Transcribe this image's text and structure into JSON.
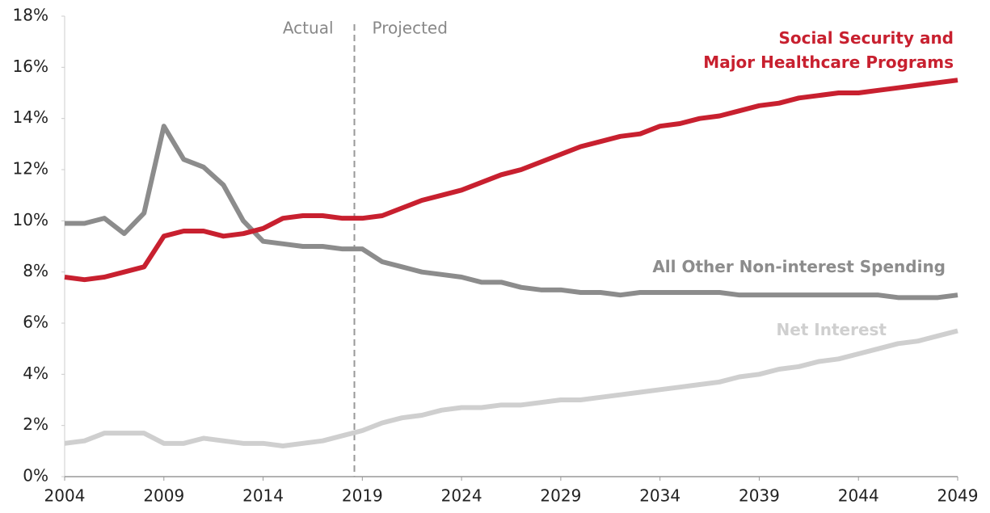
{
  "chart_data": {
    "type": "line",
    "x": [
      2004,
      2005,
      2006,
      2007,
      2008,
      2009,
      2010,
      2011,
      2012,
      2013,
      2014,
      2015,
      2016,
      2017,
      2018,
      2019,
      2020,
      2021,
      2022,
      2023,
      2024,
      2025,
      2026,
      2027,
      2028,
      2029,
      2030,
      2031,
      2032,
      2033,
      2034,
      2035,
      2036,
      2037,
      2038,
      2039,
      2040,
      2041,
      2042,
      2043,
      2044,
      2045,
      2046,
      2047,
      2048,
      2049
    ],
    "xlim": [
      2004,
      2049
    ],
    "xticks": [
      2004,
      2009,
      2014,
      2019,
      2024,
      2029,
      2034,
      2039,
      2044,
      2049
    ],
    "ylim": [
      0,
      18
    ],
    "yticks": [
      {
        "value": 0,
        "label": "0%"
      },
      {
        "value": 2,
        "label": "2%"
      },
      {
        "value": 4,
        "label": "4%"
      },
      {
        "value": 6,
        "label": "6%"
      },
      {
        "value": 8,
        "label": "8%"
      },
      {
        "value": 10,
        "label": "10%"
      },
      {
        "value": 12,
        "label": "12%"
      },
      {
        "value": 14,
        "label": "14%"
      },
      {
        "value": 16,
        "label": "16%"
      },
      {
        "value": 18,
        "label": "18%"
      }
    ],
    "grid": false,
    "divider": {
      "x": 2018.6,
      "left_label": "Actual",
      "right_label": "Projected"
    },
    "series": [
      {
        "name": "Social Security and\nMajor Healthcare Programs",
        "color": "#c8202f",
        "values": [
          7.8,
          7.7,
          7.8,
          8.0,
          8.2,
          9.4,
          9.6,
          9.6,
          9.4,
          9.5,
          9.7,
          10.1,
          10.2,
          10.2,
          10.1,
          10.1,
          10.2,
          10.5,
          10.8,
          11.0,
          11.2,
          11.5,
          11.8,
          12.0,
          12.3,
          12.6,
          12.9,
          13.1,
          13.3,
          13.4,
          13.7,
          13.8,
          14.0,
          14.1,
          14.3,
          14.5,
          14.6,
          14.8,
          14.9,
          15.0,
          15.0,
          15.1,
          15.2,
          15.3,
          15.4,
          15.5
        ]
      },
      {
        "name": "All Other Non-interest Spending",
        "color": "#8c8c8c",
        "values": [
          9.9,
          9.9,
          10.1,
          9.5,
          10.3,
          13.7,
          12.4,
          12.1,
          11.4,
          10.0,
          9.2,
          9.1,
          9.0,
          9.0,
          8.9,
          8.9,
          8.4,
          8.2,
          8.0,
          7.9,
          7.8,
          7.6,
          7.6,
          7.4,
          7.3,
          7.3,
          7.2,
          7.2,
          7.1,
          7.2,
          7.2,
          7.2,
          7.2,
          7.2,
          7.1,
          7.1,
          7.1,
          7.1,
          7.1,
          7.1,
          7.1,
          7.1,
          7.0,
          7.0,
          7.0,
          7.1
        ]
      },
      {
        "name": "Net Interest",
        "color": "#cfcfcf",
        "values": [
          1.3,
          1.4,
          1.7,
          1.7,
          1.7,
          1.3,
          1.3,
          1.5,
          1.4,
          1.3,
          1.3,
          1.2,
          1.3,
          1.4,
          1.6,
          1.8,
          2.1,
          2.3,
          2.4,
          2.6,
          2.7,
          2.7,
          2.8,
          2.8,
          2.9,
          3.0,
          3.0,
          3.1,
          3.2,
          3.3,
          3.4,
          3.5,
          3.6,
          3.7,
          3.9,
          4.0,
          4.2,
          4.3,
          4.5,
          4.6,
          4.8,
          5.0,
          5.2,
          5.3,
          5.5,
          5.7
        ]
      }
    ]
  }
}
